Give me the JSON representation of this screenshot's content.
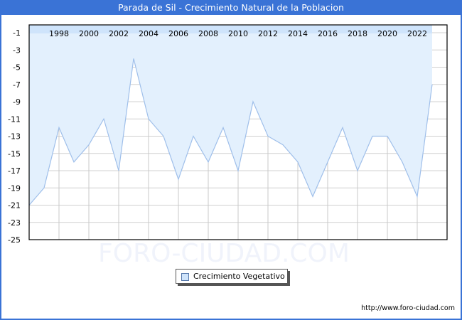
{
  "title": "Parada de Sil - Crecimiento Natural de la Poblacion",
  "watermark": "FORO-CIUDAD.COM",
  "footer_url": "http://www.foro-ciudad.com",
  "legend": {
    "label": "Crecimiento Vegetativo",
    "swatch_color": "#cfe4fb"
  },
  "colors": {
    "header": "#3a73d6",
    "fill": "#e3f0fd",
    "line": "#9fbfea",
    "grid": "#d0d0d0"
  },
  "chart_data": {
    "type": "area",
    "title": "Parada de Sil - Crecimiento Natural de la Poblacion",
    "xlabel": "",
    "ylabel": "",
    "x": [
      1996,
      1997,
      1998,
      1999,
      2000,
      2001,
      2002,
      2003,
      2004,
      2005,
      2006,
      2007,
      2008,
      2009,
      2010,
      2011,
      2012,
      2013,
      2014,
      2015,
      2016,
      2017,
      2018,
      2019,
      2020,
      2021,
      2022,
      2023
    ],
    "series": [
      {
        "name": "Crecimiento Vegetativo",
        "values": [
          -21,
          -19,
          -12,
          -16,
          -14,
          -11,
          -17,
          -4,
          -11,
          -13,
          -18,
          -13,
          -16,
          -12,
          -17,
          -9,
          -13,
          -14,
          -16,
          -20,
          -16,
          -12,
          -17,
          -13,
          -13,
          -16,
          -20,
          -7
        ]
      }
    ],
    "x_tick_labels": [
      "1998",
      "2000",
      "2002",
      "2004",
      "2006",
      "2008",
      "2010",
      "2012",
      "2014",
      "2016",
      "2018",
      "2020",
      "2022"
    ],
    "y_tick_labels": [
      "-1",
      "-3",
      "-5",
      "-7",
      "-9",
      "-11",
      "-13",
      "-15",
      "-17",
      "-19",
      "-21",
      "-23",
      "-25"
    ],
    "ylim": [
      -25,
      -1
    ],
    "grid": true,
    "legend_position": "bottom"
  }
}
